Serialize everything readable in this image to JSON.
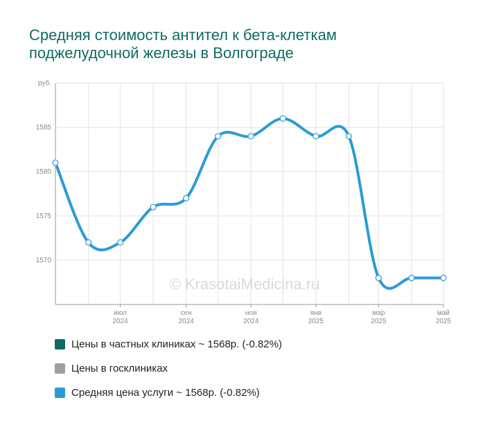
{
  "title_lines": [
    "Средняя стоимость антител к бета-клеткам",
    "поджелудочной железы в Волгограде"
  ],
  "watermark": "© KrasotaiMedicina.ru",
  "chart_data": {
    "type": "line",
    "ylabel": "руб.",
    "ylim": [
      1565,
      1590
    ],
    "yticks": [
      1570,
      1575,
      1580,
      1585
    ],
    "xlim": [
      "2024-05-15",
      "2025-05-15"
    ],
    "x_ticks": [
      {
        "date": "2024-07-15",
        "month": "июл",
        "year": "2024"
      },
      {
        "date": "2024-09-15",
        "month": "сен",
        "year": "2024"
      },
      {
        "date": "2024-11-15",
        "month": "ноя",
        "year": "2024"
      },
      {
        "date": "2025-01-15",
        "month": "янв",
        "year": "2025"
      },
      {
        "date": "2025-03-15",
        "month": "мар",
        "year": "2025"
      },
      {
        "date": "2025-05-15",
        "month": "май",
        "year": "2025"
      }
    ],
    "series": [
      {
        "name": "Средняя цена услуги",
        "color": "#2a9bd6",
        "x": [
          "2024-05-15",
          "2024-06-15",
          "2024-07-15",
          "2024-08-15",
          "2024-09-15",
          "2024-10-15",
          "2024-11-15",
          "2024-12-15",
          "2025-01-15",
          "2025-02-15",
          "2025-03-15",
          "2025-04-15",
          "2025-05-15"
        ],
        "values": [
          1581,
          1572,
          1572,
          1576,
          1577,
          1584,
          1584,
          1586,
          1584,
          1584,
          1568,
          1568,
          1568
        ]
      }
    ]
  },
  "legend": [
    {
      "label": "Цены в частных клиниках ~ 1568р. (-0.82%)",
      "color": "#0e6b63"
    },
    {
      "label": "Цены в госклиниках",
      "color": "#9e9e9e"
    },
    {
      "label": "Средняя цена услуги ~ 1568р. (-0.82%)",
      "color": "#2a9bd6"
    }
  ]
}
